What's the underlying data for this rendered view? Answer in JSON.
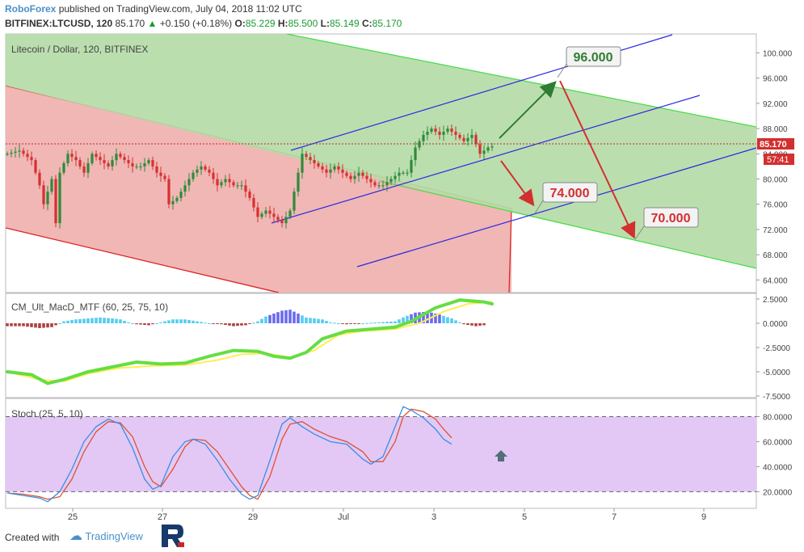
{
  "header": {
    "brand": "RoboForex",
    "published": "published on TradingView.com, July 04, 2018 11:02 UTC",
    "symbol": "BITFINEX:LTCUSD, 120",
    "last": "85.170",
    "change": "+0.150 (+0.18%)",
    "o_label": "O:",
    "o_value": "85.229",
    "h_label": "H:",
    "h_value": "85.500",
    "l_label": "L:",
    "l_value": "85.149",
    "c_label": "C:",
    "c_value": "85.170"
  },
  "footer": {
    "created_with": "Created with",
    "tradingview": "TradingView"
  },
  "colors": {
    "green_fill": "#b5dba8",
    "red_fill": "#f0b7b5",
    "stoch_fill": "#e3c8f5",
    "bull": "#2e8b3a",
    "bear": "#d63030",
    "channel_green": "#44dd44",
    "channel_red": "#dd2222",
    "blue": "#2a2ae0",
    "price_tag": "#d32f2f",
    "target_green": "#2e7d32",
    "target_red": "#d32f2f",
    "macd_hist_pos": "#55ccee",
    "macd_hist_pos_strong": "#6a6af0",
    "macd_hist_neg": "#b04040",
    "macd_up": "#66dd44",
    "macd_down": "#e03030",
    "signal": "#ffee55",
    "stoch_k": "#3a8ee0",
    "stoch_d": "#e05030"
  },
  "chart_data": [
    {
      "type": "candlestick",
      "title": "Litecoin / Dollar, 120, BITFINEX",
      "y_range": [
        62,
        103
      ],
      "yticks": [
        "100.000",
        "96.000",
        "92.000",
        "88.000",
        "84.000",
        "80.000",
        "76.000",
        "72.000",
        "68.000",
        "64.000"
      ],
      "last_price": "85.170",
      "countdown": "57:41",
      "x_axis": {
        "ticks": [
          "25",
          "27",
          "29",
          "Jul",
          "3",
          "5",
          "7",
          "9"
        ]
      },
      "close_path": [
        [
          0,
          84
        ],
        [
          3,
          84.5
        ],
        [
          6,
          83
        ],
        [
          8,
          79
        ],
        [
          9,
          76
        ],
        [
          11,
          80
        ],
        [
          12,
          73
        ],
        [
          13,
          81
        ],
        [
          15,
          84
        ],
        [
          17,
          83
        ],
        [
          19,
          81
        ],
        [
          21,
          84
        ],
        [
          23,
          83
        ],
        [
          25,
          82
        ],
        [
          27,
          84
        ],
        [
          29,
          83
        ],
        [
          31,
          82
        ],
        [
          33,
          82
        ],
        [
          35,
          83
        ],
        [
          37,
          81
        ],
        [
          39,
          80
        ],
        [
          40,
          76
        ],
        [
          42,
          77
        ],
        [
          44,
          79
        ],
        [
          46,
          81
        ],
        [
          48,
          82
        ],
        [
          50,
          81
        ],
        [
          52,
          79
        ],
        [
          54,
          80
        ],
        [
          56,
          79
        ],
        [
          58,
          79
        ],
        [
          60,
          77
        ],
        [
          62,
          74
        ],
        [
          64,
          75
        ],
        [
          66,
          74
        ],
        [
          68,
          73
        ],
        [
          70,
          75
        ],
        [
          72,
          81
        ],
        [
          73,
          84
        ],
        [
          75,
          83
        ],
        [
          77,
          82
        ],
        [
          79,
          81
        ],
        [
          81,
          82
        ],
        [
          83,
          81
        ],
        [
          85,
          80
        ],
        [
          87,
          81
        ],
        [
          89,
          80
        ],
        [
          91,
          79
        ],
        [
          93,
          79
        ],
        [
          95,
          80
        ],
        [
          97,
          81
        ],
        [
          99,
          81
        ],
        [
          101,
          85
        ],
        [
          103,
          87
        ],
        [
          105,
          88
        ],
        [
          107,
          87
        ],
        [
          109,
          88
        ],
        [
          111,
          87
        ],
        [
          113,
          86
        ],
        [
          115,
          87
        ],
        [
          117,
          84
        ],
        [
          119,
          85
        ],
        [
          120,
          85.17
        ]
      ],
      "annotations": [
        {
          "label": "96.000",
          "value": 96,
          "color": "green"
        },
        {
          "label": "74.000",
          "value": 74,
          "color": "red"
        },
        {
          "label": "70.000",
          "value": 70,
          "color": "red"
        }
      ]
    },
    {
      "type": "line",
      "title": "CM_Ult_MacD_MTF (60, 25, 75, 10)",
      "y_range": [
        -7.5,
        2.5
      ],
      "yticks": [
        "2.5000",
        "0.0000",
        "-2.5000",
        "-5.0000",
        "-7.5000"
      ],
      "macd": [
        [
          0,
          -5
        ],
        [
          6,
          -5.3
        ],
        [
          10,
          -6.2
        ],
        [
          14,
          -5.8
        ],
        [
          20,
          -5
        ],
        [
          26,
          -4.5
        ],
        [
          32,
          -4
        ],
        [
          38,
          -4.2
        ],
        [
          44,
          -4.1
        ],
        [
          50,
          -3.4
        ],
        [
          56,
          -2.8
        ],
        [
          62,
          -2.9
        ],
        [
          66,
          -3.4
        ],
        [
          70,
          -3.6
        ],
        [
          74,
          -3
        ],
        [
          78,
          -1.6
        ],
        [
          84,
          -0.8
        ],
        [
          90,
          -0.6
        ],
        [
          96,
          -0.4
        ],
        [
          100,
          0.2
        ],
        [
          106,
          1.6
        ],
        [
          112,
          2.4
        ],
        [
          118,
          2.2
        ],
        [
          120,
          2.0
        ]
      ],
      "signal": [
        [
          0,
          -5
        ],
        [
          8,
          -5.8
        ],
        [
          14,
          -6
        ],
        [
          20,
          -5.2
        ],
        [
          28,
          -4.6
        ],
        [
          36,
          -4.4
        ],
        [
          44,
          -4.3
        ],
        [
          52,
          -3.8
        ],
        [
          58,
          -3.2
        ],
        [
          64,
          -3.1
        ],
        [
          70,
          -3.5
        ],
        [
          76,
          -2.8
        ],
        [
          82,
          -1.2
        ],
        [
          88,
          -0.8
        ],
        [
          96,
          -0.6
        ],
        [
          102,
          0
        ],
        [
          108,
          1.2
        ],
        [
          114,
          2.0
        ],
        [
          120,
          2.2
        ]
      ],
      "histogram": [
        [
          0,
          -0.3
        ],
        [
          4,
          -0.3
        ],
        [
          8,
          -0.5
        ],
        [
          11,
          -0.4
        ],
        [
          14,
          0.2
        ],
        [
          17,
          0.4
        ],
        [
          20,
          0.5
        ],
        [
          23,
          0.6
        ],
        [
          26,
          0.5
        ],
        [
          28,
          0.4
        ],
        [
          30,
          0.1
        ],
        [
          32,
          -0.1
        ],
        [
          35,
          -0.2
        ],
        [
          38,
          0.1
        ],
        [
          41,
          0.4
        ],
        [
          44,
          0.4
        ],
        [
          47,
          0.2
        ],
        [
          50,
          0
        ],
        [
          53,
          -0.1
        ],
        [
          56,
          -0.3
        ],
        [
          59,
          -0.2
        ],
        [
          62,
          0.2
        ],
        [
          64,
          0.7
        ],
        [
          66,
          1.0
        ],
        [
          68,
          1.3
        ],
        [
          70,
          1.4
        ],
        [
          72,
          1.0
        ],
        [
          74,
          0.6
        ],
        [
          78,
          0.4
        ],
        [
          80,
          0.1
        ],
        [
          84,
          -0.1
        ],
        [
          96,
          0.2
        ],
        [
          98,
          0.6
        ],
        [
          101,
          1.1
        ],
        [
          104,
          1.2
        ],
        [
          107,
          0.9
        ],
        [
          110,
          0.5
        ],
        [
          113,
          -0.1
        ],
        [
          116,
          -0.3
        ],
        [
          118,
          -0.2
        ]
      ]
    },
    {
      "type": "line",
      "title": "Stoch (25, 5, 10)",
      "y_range": [
        8,
        90
      ],
      "yticks": [
        "80.0000",
        "60.0000",
        "40.0000",
        "20.0000"
      ],
      "bands": [
        20,
        80
      ],
      "k": [
        [
          0,
          19
        ],
        [
          4,
          17
        ],
        [
          8,
          15
        ],
        [
          10,
          12
        ],
        [
          13,
          20
        ],
        [
          16,
          38
        ],
        [
          19,
          60
        ],
        [
          22,
          72
        ],
        [
          25,
          78
        ],
        [
          28,
          74
        ],
        [
          31,
          55
        ],
        [
          34,
          30
        ],
        [
          36,
          22
        ],
        [
          38,
          25
        ],
        [
          41,
          48
        ],
        [
          44,
          60
        ],
        [
          46,
          62
        ],
        [
          49,
          58
        ],
        [
          52,
          45
        ],
        [
          55,
          30
        ],
        [
          58,
          18
        ],
        [
          60,
          14
        ],
        [
          62,
          17
        ],
        [
          65,
          45
        ],
        [
          68,
          74
        ],
        [
          70,
          79
        ],
        [
          73,
          72
        ],
        [
          76,
          66
        ],
        [
          80,
          60
        ],
        [
          84,
          58
        ],
        [
          88,
          46
        ],
        [
          90,
          42
        ],
        [
          93,
          48
        ],
        [
          96,
          72
        ],
        [
          98,
          88
        ],
        [
          100,
          85
        ],
        [
          103,
          79
        ],
        [
          106,
          70
        ],
        [
          108,
          62
        ],
        [
          110,
          58
        ]
      ],
      "d": [
        [
          0,
          19
        ],
        [
          4,
          18
        ],
        [
          8,
          16
        ],
        [
          10,
          14
        ],
        [
          13,
          16
        ],
        [
          16,
          30
        ],
        [
          19,
          52
        ],
        [
          22,
          68
        ],
        [
          25,
          76
        ],
        [
          28,
          75
        ],
        [
          31,
          64
        ],
        [
          34,
          40
        ],
        [
          36,
          28
        ],
        [
          38,
          24
        ],
        [
          41,
          38
        ],
        [
          44,
          56
        ],
        [
          46,
          62
        ],
        [
          49,
          61
        ],
        [
          52,
          52
        ],
        [
          55,
          38
        ],
        [
          58,
          24
        ],
        [
          60,
          17
        ],
        [
          62,
          14
        ],
        [
          65,
          32
        ],
        [
          68,
          62
        ],
        [
          70,
          74
        ],
        [
          73,
          76
        ],
        [
          76,
          70
        ],
        [
          80,
          64
        ],
        [
          84,
          60
        ],
        [
          88,
          52
        ],
        [
          90,
          44
        ],
        [
          93,
          44
        ],
        [
          96,
          60
        ],
        [
          98,
          80
        ],
        [
          100,
          86
        ],
        [
          103,
          84
        ],
        [
          106,
          78
        ],
        [
          108,
          70
        ],
        [
          110,
          63
        ]
      ]
    }
  ]
}
